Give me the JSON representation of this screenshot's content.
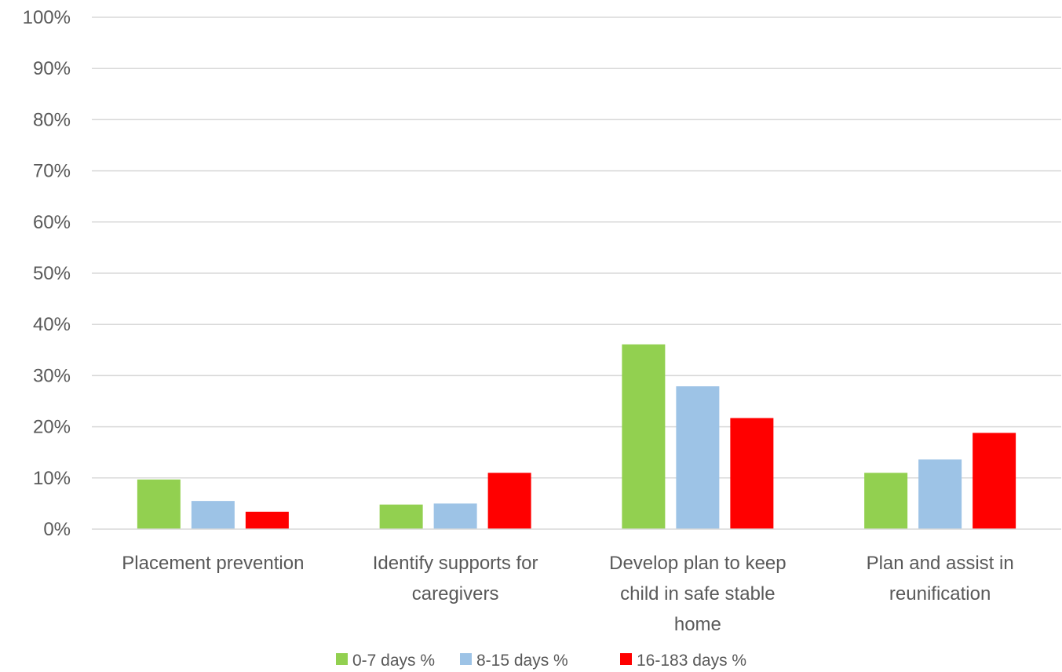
{
  "chart_data": {
    "type": "bar",
    "categories": [
      [
        "Placement prevention"
      ],
      [
        "Identify supports for",
        "caregivers"
      ],
      [
        "Develop plan to keep",
        "child in safe stable",
        "home"
      ],
      [
        "Plan and assist in",
        "reunification"
      ]
    ],
    "series": [
      {
        "name": "0-7 days %",
        "color": "#92D050",
        "values": [
          9.7,
          4.8,
          36.1,
          11.0
        ]
      },
      {
        "name": "8-15 days %",
        "color": "#9DC3E6",
        "values": [
          5.5,
          5.0,
          27.9,
          13.6
        ]
      },
      {
        "name": "16-183 days %",
        "color": "#FF0000",
        "values": [
          3.4,
          11.0,
          21.7,
          18.8
        ]
      }
    ],
    "yticks": [
      "0%",
      "10%",
      "20%",
      "30%",
      "40%",
      "50%",
      "60%",
      "70%",
      "80%",
      "90%",
      "100%"
    ],
    "ylim": [
      0,
      100
    ],
    "grid": true,
    "legend_position": "bottom",
    "title": "",
    "xlabel": "",
    "ylabel": ""
  }
}
